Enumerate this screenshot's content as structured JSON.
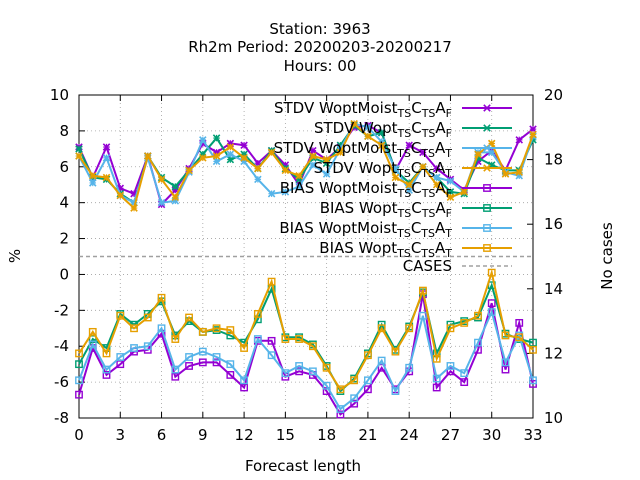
{
  "chart_data": {
    "type": "line",
    "title_lines": [
      "Station:     3963",
      "Rh2m   Period: 20200203-20200217",
      "Hours:  00"
    ],
    "xlabel": "Forecast length",
    "ylabel": "%",
    "y2label": "No cases",
    "x": [
      0,
      1,
      2,
      3,
      4,
      5,
      6,
      7,
      8,
      9,
      10,
      11,
      12,
      13,
      14,
      15,
      16,
      17,
      18,
      19,
      20,
      21,
      22,
      23,
      24,
      25,
      26,
      27,
      28,
      29,
      30,
      31,
      32,
      33
    ],
    "xlim": [
      0,
      33
    ],
    "xticks": [
      "0",
      "3",
      "6",
      "9",
      "12",
      "15",
      "18",
      "21",
      "24",
      "27",
      "30",
      "33"
    ],
    "ylim": [
      -8,
      10
    ],
    "yticks": [
      "-8",
      "-6",
      "-4",
      "-2",
      "0",
      "2",
      "4",
      "6",
      "8",
      "10"
    ],
    "y2lim": [
      10,
      20
    ],
    "y2ticks": [
      "10",
      "12",
      "14",
      "16",
      "18",
      "20"
    ],
    "grid": true,
    "legend_position": "top-right",
    "series": [
      {
        "name_main": "STDV WoptMoist",
        "sub1": "TS",
        "mid": "C",
        "sub2": "TS",
        "end": "A",
        "sub3": "F",
        "color": "#9400d3",
        "marker": "x",
        "values": [
          7.1,
          5.4,
          7.1,
          4.8,
          4.5,
          6.6,
          3.9,
          4.7,
          5.9,
          7.3,
          6.8,
          7.3,
          7.2,
          6.2,
          6.9,
          6.1,
          5.0,
          6.9,
          6.4,
          7.1,
          8.2,
          8.3,
          7.9,
          5.8,
          7.2,
          6.8,
          5.9,
          5.3,
          4.7,
          6.3,
          6.9,
          5.8,
          7.5,
          8.1
        ]
      },
      {
        "name_main": "STDV Wopt",
        "sub1": "TS",
        "mid": "C",
        "sub2": "TS",
        "end": "A",
        "sub3": "F",
        "color": "#009e73",
        "marker": "x",
        "values": [
          7.0,
          5.4,
          5.3,
          4.5,
          4.0,
          6.6,
          5.4,
          4.9,
          5.8,
          6.7,
          7.6,
          6.4,
          6.7,
          5.9,
          6.9,
          5.9,
          5.3,
          6.5,
          6.2,
          7.2,
          8.3,
          7.7,
          7.9,
          5.8,
          5.1,
          6.0,
          5.4,
          4.6,
          4.5,
          6.5,
          6.1,
          5.8,
          5.8,
          7.5
        ]
      },
      {
        "name_main": "STDV WoptMoist",
        "sub1": "TS",
        "mid": "C",
        "sub2": "TS",
        "end": "A",
        "sub3": "T",
        "color": "#56b4e9",
        "marker": "x",
        "values": [
          6.6,
          5.1,
          6.5,
          4.4,
          4.0,
          6.5,
          4.0,
          4.1,
          5.7,
          7.5,
          6.3,
          6.7,
          6.3,
          5.3,
          4.5,
          4.6,
          4.9,
          6.1,
          5.6,
          7.0,
          8.4,
          8.2,
          7.4,
          5.9,
          4.7,
          6.0,
          5.4,
          5.2,
          4.6,
          6.8,
          6.8,
          5.7,
          5.5,
          7.7
        ]
      },
      {
        "name_main": "STDV Wopt",
        "sub1": "TS",
        "mid": "C",
        "sub2": "TS",
        "end": "A",
        "sub3": "T",
        "color": "#e69f00",
        "marker": "x",
        "values": [
          6.6,
          5.5,
          5.4,
          4.4,
          3.7,
          6.6,
          5.3,
          4.3,
          5.8,
          6.5,
          6.6,
          7.1,
          6.5,
          5.9,
          6.8,
          5.8,
          5.5,
          6.6,
          6.4,
          6.8,
          8.4,
          7.7,
          7.2,
          5.4,
          5.0,
          6.0,
          5.0,
          4.3,
          4.6,
          6.7,
          7.3,
          5.6,
          5.7,
          7.8
        ]
      },
      {
        "name_main": "BIAS WoptMoist",
        "sub1": "TS",
        "mid": "C",
        "sub2": "TS",
        "end": "A",
        "sub3": "F",
        "color": "#9400d3",
        "marker": "square",
        "values": [
          -6.7,
          -4.1,
          -5.6,
          -5.0,
          -4.3,
          -4.2,
          -3.3,
          -5.7,
          -5.1,
          -4.9,
          -4.9,
          -5.6,
          -6.3,
          -3.7,
          -3.7,
          -5.7,
          -5.4,
          -5.6,
          -6.5,
          -7.8,
          -7.2,
          -6.4,
          -5.2,
          -6.4,
          -5.4,
          -1.1,
          -6.3,
          -5.4,
          -6.0,
          -4.2,
          -1.6,
          -5.3,
          -2.7,
          -6.1
        ]
      },
      {
        "name_main": "BIAS Wopt",
        "sub1": "TS",
        "mid": "C",
        "sub2": "TS",
        "end": "A",
        "sub3": "F",
        "color": "#009e73",
        "marker": "square",
        "values": [
          -5.0,
          -3.6,
          -4.1,
          -2.2,
          -2.8,
          -2.2,
          -1.5,
          -3.4,
          -2.6,
          -3.2,
          -3.1,
          -3.4,
          -3.8,
          -2.5,
          -0.8,
          -3.5,
          -3.5,
          -3.9,
          -5.1,
          -6.5,
          -5.8,
          -4.4,
          -2.8,
          -4.2,
          -2.9,
          -1.0,
          -4.4,
          -2.8,
          -2.6,
          -2.4,
          -0.6,
          -3.3,
          -3.6,
          -3.8
        ]
      },
      {
        "name_main": "BIAS WoptMoist",
        "sub1": "TS",
        "mid": "C",
        "sub2": "TS",
        "end": "A",
        "sub3": "T",
        "color": "#56b4e9",
        "marker": "square",
        "values": [
          -5.9,
          -3.9,
          -5.3,
          -4.6,
          -4.1,
          -4.0,
          -3.0,
          -5.3,
          -4.6,
          -4.3,
          -4.6,
          -5.0,
          -5.9,
          -3.6,
          -4.5,
          -5.5,
          -5.1,
          -5.4,
          -6.2,
          -7.5,
          -6.9,
          -5.9,
          -4.8,
          -6.5,
          -5.2,
          -2.3,
          -5.8,
          -5.1,
          -5.5,
          -3.8,
          -2.1,
          -4.9,
          -3.4,
          -5.9
        ]
      },
      {
        "name_main": "BIAS Wopt",
        "sub1": "TS",
        "mid": "C",
        "sub2": "TS",
        "end": "A",
        "sub3": "T",
        "color": "#e69f00",
        "marker": "square",
        "values": [
          -4.4,
          -3.2,
          -4.4,
          -2.3,
          -3.0,
          -2.4,
          -1.3,
          -3.6,
          -2.4,
          -3.2,
          -3.0,
          -3.1,
          -4.1,
          -2.2,
          -0.4,
          -3.6,
          -3.6,
          -4.0,
          -5.2,
          -6.4,
          -5.9,
          -4.5,
          -3.0,
          -4.3,
          -3.0,
          -0.9,
          -4.7,
          -3.0,
          -2.7,
          -2.3,
          0.1,
          -3.4,
          -3.5,
          -4.2
        ]
      }
    ],
    "cases": {
      "name": "CASES",
      "color": "#a0a0a0",
      "value": 15
    }
  }
}
